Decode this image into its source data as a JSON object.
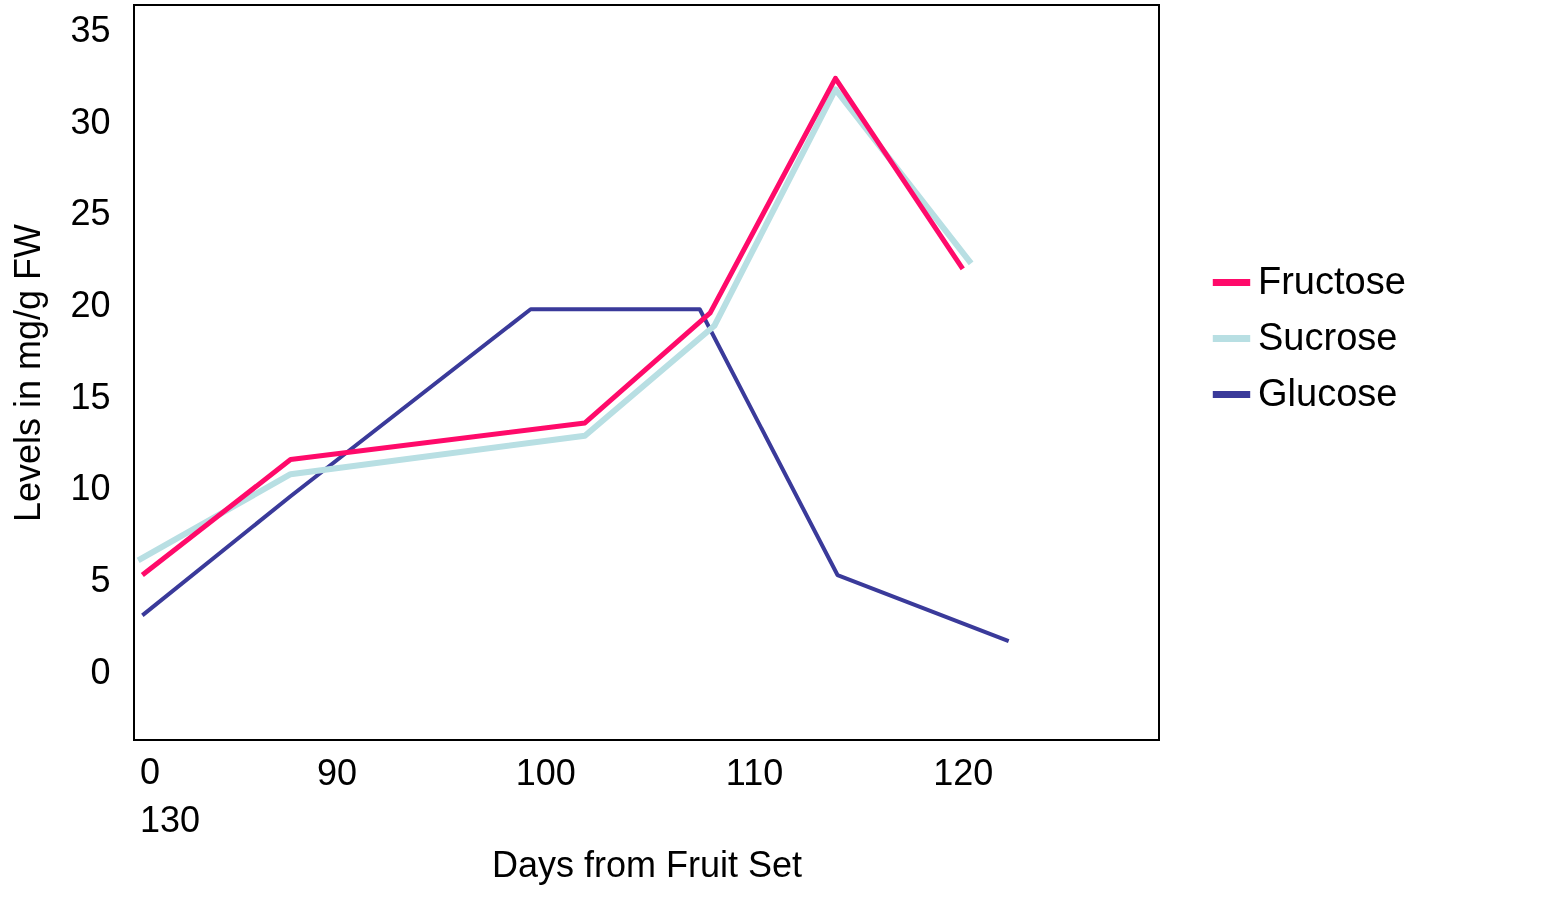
{
  "chart_data": {
    "type": "line",
    "xlabel": "Days from Fruit Set",
    "ylabel": "Levels in mg/g FW",
    "series": [
      {
        "name": "Fructose",
        "color": "#ff0a6a",
        "x": [
          80.7,
          87.8,
          101.9,
          107.9,
          113.9,
          120.0
        ],
        "values": [
          5.3,
          11.6,
          13.6,
          19.6,
          32.4,
          22.0
        ]
      },
      {
        "name": "Sucrose",
        "color": "#b8dfe3",
        "x": [
          80.5,
          87.8,
          101.9,
          108.1,
          113.9,
          120.4
        ],
        "values": [
          6.1,
          10.8,
          12.9,
          18.9,
          31.8,
          22.3
        ]
      },
      {
        "name": "Glucose",
        "color": "#3a3a9a",
        "x": [
          80.7,
          87.8,
          99.3,
          107.4,
          114.0,
          122.2
        ],
        "values": [
          3.1,
          9.6,
          19.8,
          19.8,
          5.3,
          1.7
        ]
      }
    ],
    "xlim": [
      80.3,
      129.4
    ],
    "xticks": [
      90,
      100,
      110,
      120
    ],
    "annotations": [
      "0\n130"
    ],
    "ylim": [
      -3.7,
      36.4
    ],
    "yticks": [
      0,
      5,
      10,
      15,
      20,
      25,
      30,
      35
    ],
    "grid": false,
    "legend": "right",
    "marker": "none",
    "line_style": "solid"
  }
}
